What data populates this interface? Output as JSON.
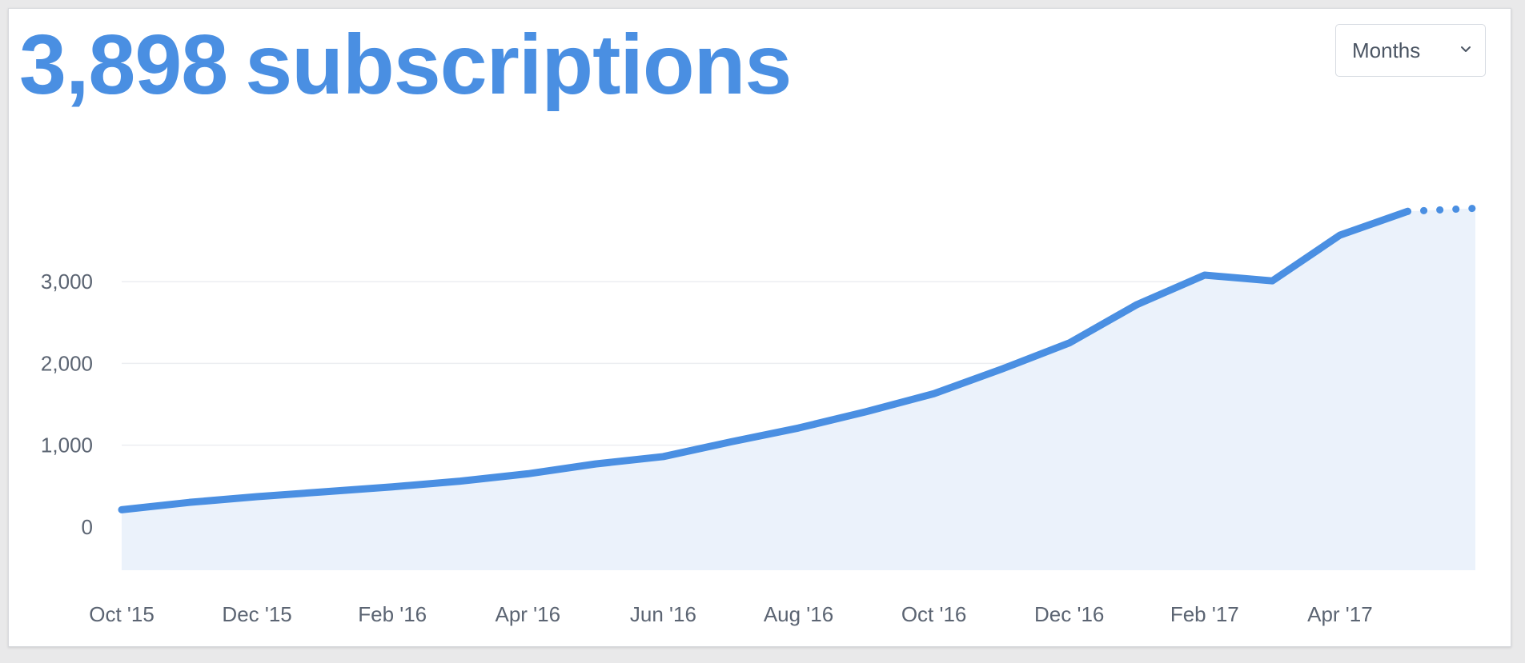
{
  "header": {
    "count": "3,898",
    "unit_label": "subscriptions"
  },
  "period_select": {
    "selected": "Months",
    "icon": "chevron-down-icon"
  },
  "colors": {
    "accent": "#4a8fe2",
    "area_fill": "#ebf2fb",
    "grid": "#eceef1",
    "tick_text": "#5b6472"
  },
  "chart_data": {
    "type": "area",
    "title": "",
    "xlabel": "",
    "ylabel": "",
    "categories": [
      "Oct '15",
      "Nov '15",
      "Dec '15",
      "Jan '16",
      "Feb '16",
      "Mar '16",
      "Apr '16",
      "May '16",
      "Jun '16",
      "Jul '16",
      "Aug '16",
      "Sep '16",
      "Oct '16",
      "Nov '16",
      "Dec '16",
      "Jan '17",
      "Feb '17",
      "Mar '17",
      "Apr '17",
      "May '17",
      "Jun '17"
    ],
    "x_tick_labels": [
      "Oct '15",
      "Dec '15",
      "Feb '16",
      "Apr '16",
      "Jun '16",
      "Aug '16",
      "Oct '16",
      "Dec '16",
      "Feb '17",
      "Apr '17"
    ],
    "series": [
      {
        "values": [
          210,
          300,
          370,
          430,
          490,
          560,
          650,
          770,
          860,
          1040,
          1210,
          1410,
          1630,
          1930,
          2250,
          2720,
          3080,
          3010,
          3570,
          3860,
          3898
        ],
        "projected_from_index": 19
      }
    ],
    "ylim": [
      -530,
      4000
    ],
    "y_ticks": [
      0,
      1000,
      2000,
      3000
    ],
    "y_tick_labels": [
      "0",
      "1,000",
      "2,000",
      "3,000"
    ],
    "grid": true,
    "legend": "none"
  }
}
